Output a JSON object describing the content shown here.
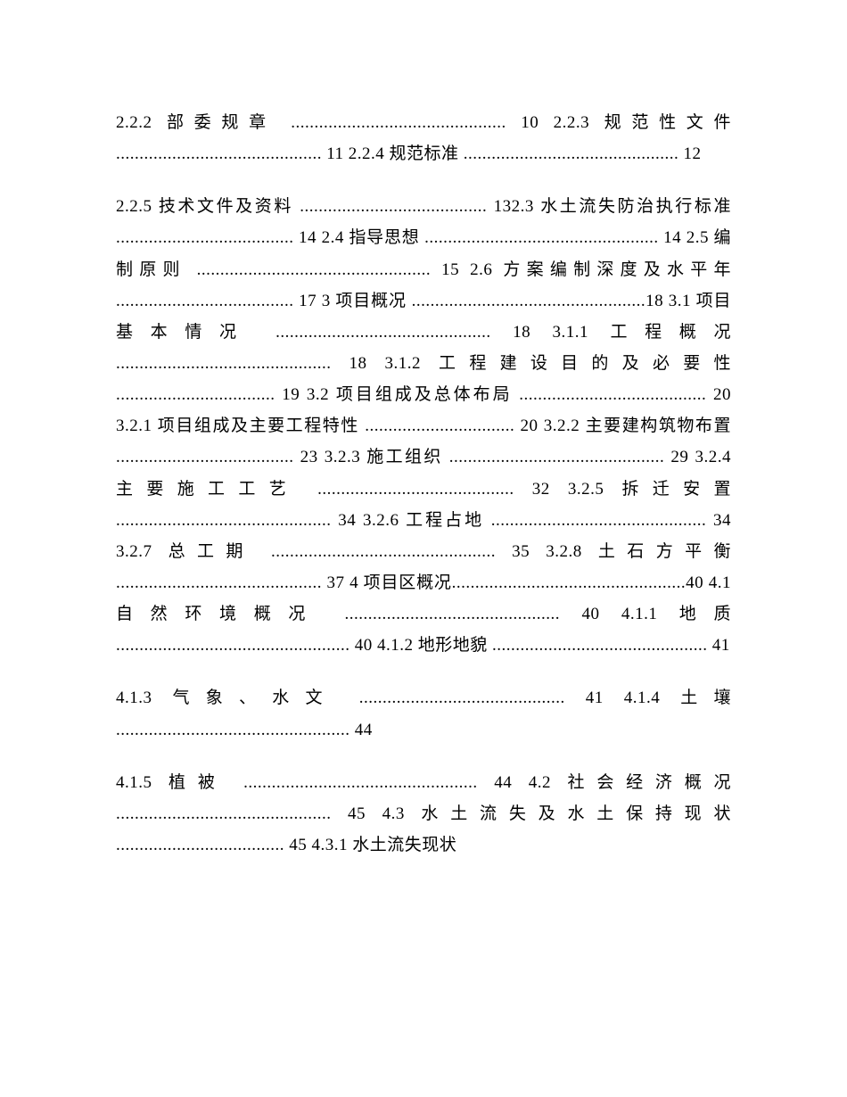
{
  "paragraphs": [
    {
      "text": "2.2.2 部委规章 .............................................. 10 2.2.3 规范性文件 ............................................ 11 2.2.4 规范标准 .............................................. 12"
    },
    {
      "text": "2.2.5 技术文件及资料 ........................................ 132.3 水土流失防治执行标准 ...................................... 14 2.4 指导思想 .................................................. 14 2.5 编制原则 .................................................. 15 2.6 方案编制深度及水平年 ...................................... 17 3 项目概况 ..................................................18 3.1 项目基本情况 .............................................. 18 3.1.1 工程概况 .............................................. 18 3.1.2 工程建设目的及必要性 .................................. 19 3.2 项目组成及总体布局 ........................................ 20 3.2.1 项目组成及主要工程特性 ................................ 20 3.2.2 主要建构筑物布置 ...................................... 23 3.2.3 施工组织 .............................................. 29 3.2.4 主要施工工艺 .......................................... 32 3.2.5 拆迁安置 .............................................. 34 3.2.6 工程占地 .............................................. 34 3.2.7 总工期 ................................................ 35 3.2.8 土石方平衡 ............................................ 37 4 项目区概况..................................................40 4.1 自然环境概况 .............................................. 40 4.1.1 地质 .................................................. 40 4.1.2 地形地貌 .............................................. 41"
    },
    {
      "text": "4.1.3 气象、水文 ............................................ 41 4.1.4 土壤 .................................................. 44"
    },
    {
      "text": "4.1.5 植被 .................................................. 44 4.2 社会经济概况 .............................................. 45 4.3 水土流失及水土保持现状 .................................... 45 4.3.1 水土流失现状"
    }
  ]
}
